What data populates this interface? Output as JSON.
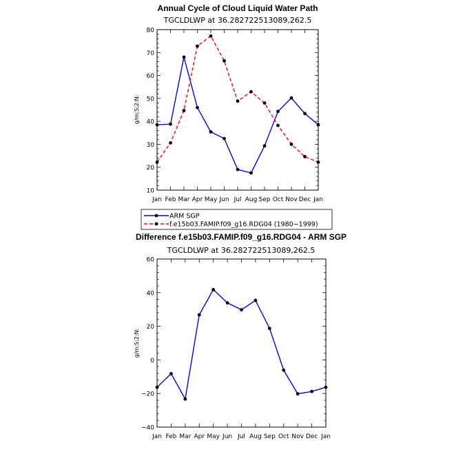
{
  "chart_data": [
    {
      "type": "line",
      "title": "Annual Cycle of Cloud Liquid Water Path",
      "subtitle": "TGCLDLWP at 36.282722513089,262.5",
      "xlabel": "",
      "ylabel": "g/m:S:2:N:",
      "categories": [
        "Jan",
        "Feb",
        "Mar",
        "Apr",
        "May",
        "Jun",
        "Jul",
        "Aug",
        "Sep",
        "Oct",
        "Nov",
        "Dec",
        "Jan"
      ],
      "ylim": [
        10,
        80
      ],
      "yticks": [
        10,
        20,
        30,
        40,
        50,
        60,
        70,
        80
      ],
      "series": [
        {
          "name": "ARM SGP",
          "color": "#0000ff",
          "dash": "solid",
          "values": [
            38.5,
            38.8,
            68.0,
            46.0,
            35.4,
            32.5,
            19.0,
            17.5,
            29.3,
            44.3,
            50.2,
            43.4,
            38.5
          ]
        },
        {
          "name": "f.e15b03.FAMIP.f09_g16.RDG04 (1980-1999)",
          "color": "#ff0000",
          "dash": "dashed",
          "values": [
            22.2,
            30.6,
            44.7,
            72.8,
            77.2,
            66.4,
            48.8,
            52.9,
            48.0,
            38.2,
            30.0,
            24.6,
            22.2
          ]
        }
      ],
      "legend": {
        "entries": [
          "ARM SGP",
          "f.e15b03.FAMIP.f09_g16.RDG04 (1980−1999)"
        ]
      }
    },
    {
      "type": "line",
      "title": "Difference f.e15b03.FAMIP.f09_g16.RDG04 - ARM SGP",
      "subtitle": "TGCLDLWP at 36.282722513089,262.5",
      "xlabel": "",
      "ylabel": "g/m:S:2:N:",
      "categories": [
        "Jan",
        "Feb",
        "Mar",
        "Apr",
        "May",
        "Jun",
        "Jul",
        "Aug",
        "Sep",
        "Oct",
        "Nov",
        "Dec",
        "Jan"
      ],
      "ylim": [
        -40,
        60
      ],
      "yticks": [
        -40,
        -20,
        0,
        20,
        40,
        60
      ],
      "ytick_labels": [
        "−40",
        "−20",
        "0",
        "20",
        "40",
        "60"
      ],
      "series": [
        {
          "name": "Difference",
          "color": "#0000ff",
          "dash": "solid",
          "values": [
            -16.3,
            -8.2,
            -23.3,
            26.8,
            41.8,
            33.9,
            29.8,
            35.4,
            18.7,
            -6.1,
            -20.2,
            -18.8,
            -16.3
          ]
        }
      ]
    }
  ]
}
